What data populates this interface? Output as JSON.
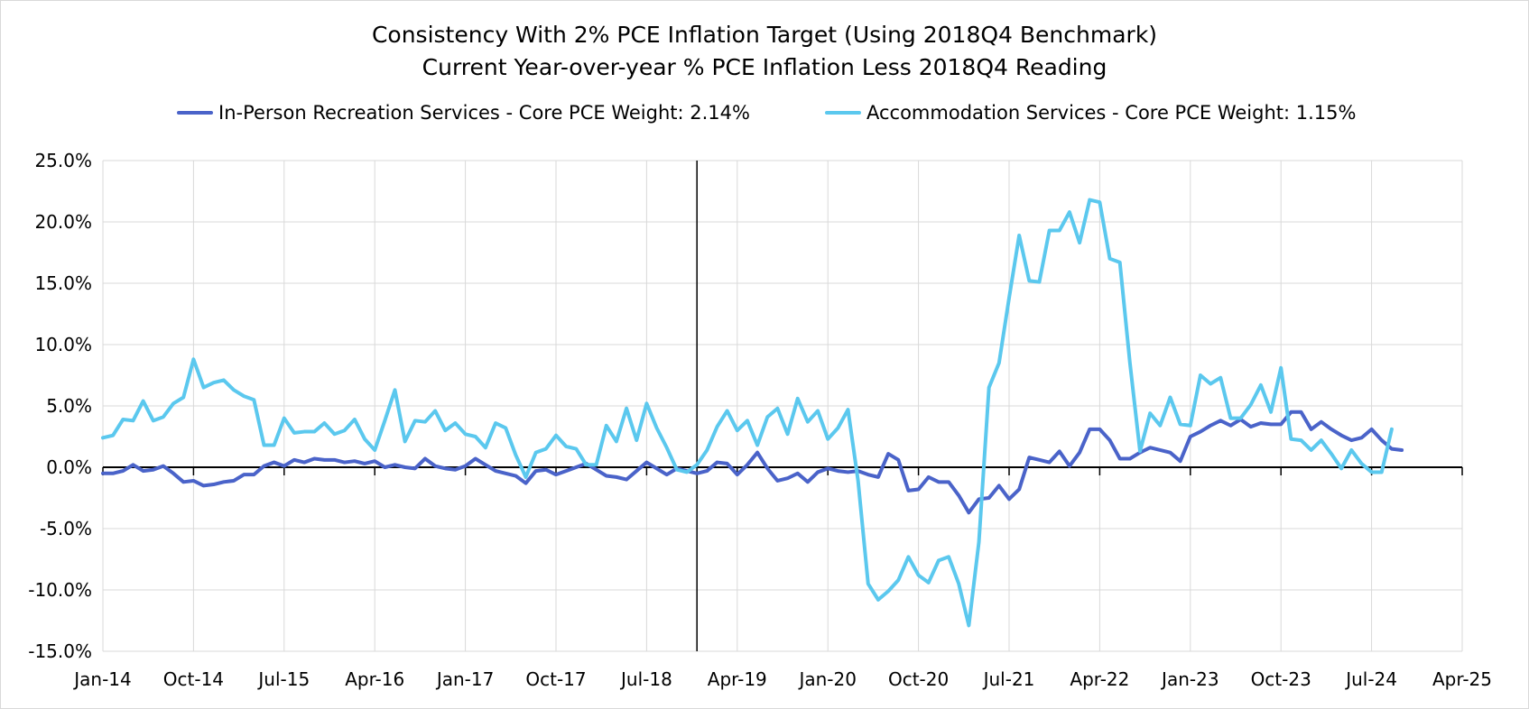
{
  "chart_data": {
    "type": "line",
    "title": "Consistency With 2% PCE Inflation Target (Using 2018Q4 Benchmark)",
    "subtitle": "Current Year-over-year % PCE Inflation Less 2018Q4 Reading",
    "xlabel": "",
    "ylabel": "",
    "ylim": [
      -15,
      25
    ],
    "y_ticks": [
      25,
      20,
      15,
      10,
      5,
      0,
      -5,
      -10,
      -15
    ],
    "y_tick_labels": [
      "25.0%",
      "20.0%",
      "15.0%",
      "10.0%",
      "5.0%",
      "0.0%",
      "-5.0%",
      "-10.0%",
      "-15.0%"
    ],
    "x_tick_labels": [
      "Jan-14",
      "Oct-14",
      "Jul-15",
      "Apr-16",
      "Jan-17",
      "Oct-17",
      "Jul-18",
      "Apr-19",
      "Jan-20",
      "Oct-20",
      "Jul-21",
      "Apr-22",
      "Jan-23",
      "Oct-23",
      "Jul-24",
      "Apr-25"
    ],
    "x_start": "Jan-14",
    "x_end": "Apr-25",
    "benchmark_line": "Dec-18",
    "grid": true,
    "legend_position": "top",
    "series": [
      {
        "name": "In-Person Recreation Services - Core PCE Weight: 2.14%",
        "color": "#4a63c9",
        "values": [
          -0.5,
          -0.5,
          -0.3,
          0.2,
          -0.3,
          -0.2,
          0.1,
          -0.5,
          -1.2,
          -1.1,
          -1.5,
          -1.4,
          -1.2,
          -1.1,
          -0.6,
          -0.6,
          0.1,
          0.4,
          0.1,
          0.6,
          0.4,
          0.7,
          0.6,
          0.6,
          0.4,
          0.5,
          0.3,
          0.5,
          0.0,
          0.2,
          0.0,
          -0.1,
          0.7,
          0.1,
          -0.1,
          -0.2,
          0.1,
          0.7,
          0.2,
          -0.3,
          -0.5,
          -0.7,
          -1.3,
          -0.3,
          -0.2,
          -0.6,
          -0.3,
          0.0,
          0.3,
          -0.2,
          -0.7,
          -0.8,
          -1.0,
          -0.3,
          0.4,
          -0.1,
          -0.6,
          -0.1,
          -0.3,
          -0.5,
          -0.3,
          0.4,
          0.3,
          -0.6,
          0.2,
          1.2,
          -0.1,
          -1.1,
          -0.9,
          -0.5,
          -1.2,
          -0.4,
          -0.1,
          -0.3,
          -0.4,
          -0.3,
          -0.6,
          -0.8,
          1.1,
          0.6,
          -1.9,
          -1.8,
          -0.8,
          -1.2,
          -1.2,
          -2.3,
          -3.7,
          -2.6,
          -2.5,
          -1.5,
          -2.6,
          -1.8,
          0.8,
          0.6,
          0.4,
          1.3,
          0.1,
          1.2,
          3.1,
          3.1,
          2.2,
          0.7,
          0.7,
          1.2,
          1.6,
          1.4,
          1.2,
          0.5,
          2.5,
          2.9,
          3.4,
          3.8,
          3.4,
          3.9,
          3.3,
          3.6,
          3.5,
          3.5,
          4.5,
          4.5,
          3.1,
          3.7,
          3.1,
          2.6,
          2.2,
          2.4,
          3.1,
          2.2,
          1.5,
          1.4
        ]
      },
      {
        "name": "Accommodation Services - Core PCE Weight: 1.15%",
        "color": "#5bc8ee",
        "values": [
          2.4,
          2.6,
          3.9,
          3.8,
          5.4,
          3.8,
          4.1,
          5.2,
          5.7,
          8.8,
          6.5,
          6.9,
          7.1,
          6.3,
          5.8,
          5.5,
          1.8,
          1.8,
          4.0,
          2.8,
          2.9,
          2.9,
          3.6,
          2.7,
          3.0,
          3.9,
          2.3,
          1.4,
          3.8,
          6.3,
          2.1,
          3.8,
          3.7,
          4.6,
          3.0,
          3.6,
          2.7,
          2.5,
          1.6,
          3.6,
          3.2,
          1.0,
          -0.8,
          1.2,
          1.5,
          2.6,
          1.7,
          1.5,
          0.2,
          0.2,
          3.4,
          2.1,
          4.8,
          2.2,
          5.2,
          3.2,
          1.6,
          -0.2,
          -0.4,
          0.2,
          1.4,
          3.3,
          4.6,
          3.0,
          3.8,
          1.8,
          4.1,
          4.8,
          2.7,
          5.6,
          3.7,
          4.6,
          2.3,
          3.2,
          4.7,
          -1.1,
          -9.5,
          -10.8,
          -10.1,
          -9.2,
          -7.3,
          -8.8,
          -9.4,
          -7.6,
          -7.3,
          -9.5,
          -12.9,
          -6.1,
          6.5,
          8.5,
          13.8,
          18.9,
          15.2,
          15.1,
          19.3,
          19.3,
          20.8,
          18.3,
          21.8,
          21.6,
          17.0,
          16.7,
          8.5,
          1.3,
          4.4,
          3.4,
          5.7,
          3.5,
          3.4,
          7.5,
          6.8,
          7.3,
          4.0,
          4.0,
          5.1,
          6.7,
          4.5,
          8.1,
          2.3,
          2.2,
          1.4,
          2.2,
          1.1,
          -0.1,
          1.4,
          0.3,
          -0.4,
          -0.4,
          3.1
        ]
      }
    ]
  }
}
